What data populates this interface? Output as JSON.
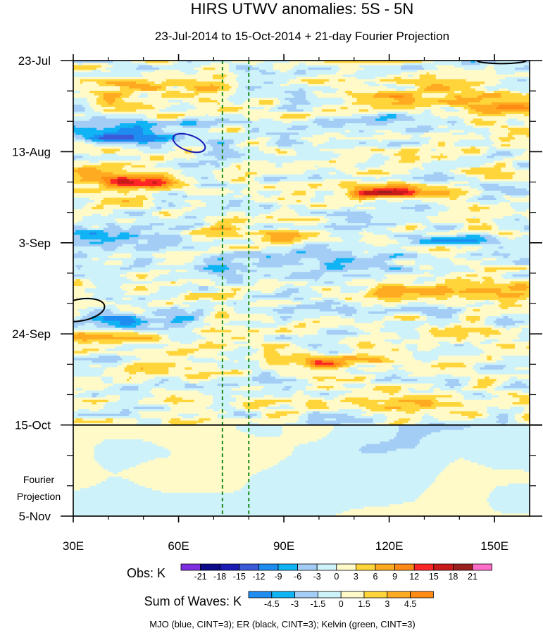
{
  "chart_data": {
    "type": "heatmap",
    "title": "HIRS UTWV anomalies: 5S - 5N",
    "subtitle": "23-Jul-2014 to 15-Oct-2014 + 21-day Fourier Projection",
    "xlabel": "",
    "ylabel": "",
    "x_range": [
      30,
      160
    ],
    "x_ticks": [
      30,
      60,
      90,
      120,
      150
    ],
    "x_tick_labels": [
      "30E",
      "60E",
      "90E",
      "120E",
      "150E"
    ],
    "y_range_days": [
      0,
      105
    ],
    "y_ticks_days": [
      0,
      21,
      42,
      63,
      84,
      105
    ],
    "y_tick_labels": [
      "23-Jul",
      "13-Aug",
      "3-Sep",
      "24-Sep",
      "15-Oct",
      "5-Nov"
    ],
    "projection_start_day": 84,
    "projection_label_1": "Fourier",
    "projection_label_2": "Projection",
    "dashed_lines_lon": [
      72.5,
      80
    ],
    "obs": {
      "label": "Obs: K",
      "levels": [
        -21,
        -18,
        -15,
        -12,
        -9,
        -6,
        -3,
        0,
        3,
        6,
        9,
        12,
        15,
        18,
        21
      ],
      "level_labels": [
        "-21",
        "-18",
        "-15",
        "-12",
        "-9",
        "-6",
        "-3",
        "0",
        "3",
        "6",
        "9",
        "12",
        "15",
        "18",
        "21"
      ],
      "colors": [
        "#7e2ee0",
        "#0a0a8a",
        "#1a1ab4",
        "#3a5ad8",
        "#1e8cf0",
        "#10b4f4",
        "#a4cdf6",
        "#cef2fa",
        "#fffac8",
        "#ffd53a",
        "#ffab21",
        "#ff8a14",
        "#ff2626",
        "#c81a1a",
        "#9b1f1f",
        "#ff6ec8"
      ]
    },
    "waves": {
      "label": "Sum of Waves: K",
      "levels": [
        -4.5,
        -3,
        -1.5,
        0,
        1.5,
        3,
        4.5
      ],
      "level_labels": [
        "-4.5",
        "-3",
        "-1.5",
        "0",
        "1.5",
        "3",
        "4.5"
      ],
      "colors": [
        "#1e8cf0",
        "#10b4f4",
        "#a4cdf6",
        "#cef2fa",
        "#fffac8",
        "#ffd53a",
        "#ffab21",
        "#ff8a14"
      ]
    },
    "contours": [
      {
        "wave": "MJO",
        "color": "#1a1ab4",
        "lon": 63,
        "day": 19.0,
        "rlon": 4.8,
        "rday": 1.8,
        "rotate": 20
      },
      {
        "wave": "ER",
        "color": "#000000",
        "lon": 32,
        "day": 57.5,
        "rlon": 7,
        "rday": 2.5,
        "rotate": -10
      },
      {
        "wave": "ER",
        "color": "#000000",
        "lon": 152,
        "day": 0.0,
        "rlon": 7,
        "rday": 0.7,
        "rotate": 0
      }
    ],
    "anomaly_bands": [
      {
        "day": 6.5,
        "thick": 2.2,
        "lon0": 30,
        "lon1": 75,
        "value": 5.0
      },
      {
        "day": 9.0,
        "thick": 2.5,
        "lon0": 120,
        "lon1": 160,
        "value": 6.5
      },
      {
        "day": 11.0,
        "thick": 1.5,
        "lon0": 145,
        "lon1": 160,
        "value": 9.0
      },
      {
        "day": 27.0,
        "thick": 3.0,
        "lon0": 30,
        "lon1": 57,
        "value": 7.0
      },
      {
        "day": 28.0,
        "thick": 1.2,
        "lon0": 42,
        "lon1": 55,
        "value": 10.0
      },
      {
        "day": 30.0,
        "thick": 1.8,
        "lon0": 110,
        "lon1": 135,
        "value": 7.0
      },
      {
        "day": 30.5,
        "thick": 1.0,
        "lon0": 113,
        "lon1": 125,
        "value": 9.0
      },
      {
        "day": 40.0,
        "thick": 1.5,
        "lon0": 62,
        "lon1": 102,
        "value": 5.0
      },
      {
        "day": 53.0,
        "thick": 1.8,
        "lon0": 115,
        "lon1": 160,
        "value": 4.0
      },
      {
        "day": 64.0,
        "thick": 1.8,
        "lon0": 30,
        "lon1": 52,
        "value": 5.0
      },
      {
        "day": 69.5,
        "thick": 1.8,
        "lon0": 88,
        "lon1": 118,
        "value": 5.0
      },
      {
        "day": 70.0,
        "thick": 0.9,
        "lon0": 98,
        "lon1": 104,
        "value": 8.0
      },
      {
        "day": 79.5,
        "thick": 1.5,
        "lon0": 80,
        "lon1": 160,
        "value": 4.0
      },
      {
        "day": 16.0,
        "thick": 2.0,
        "lon0": 30,
        "lon1": 65,
        "value": -6.0
      },
      {
        "day": 18.0,
        "thick": 1.0,
        "lon0": 38,
        "lon1": 55,
        "value": -9.0
      },
      {
        "day": 13.5,
        "thick": 1.5,
        "lon0": 100,
        "lon1": 135,
        "value": -5.0
      },
      {
        "day": 40.5,
        "thick": 1.8,
        "lon0": 30,
        "lon1": 62,
        "value": -6.0
      },
      {
        "day": 41.5,
        "thick": 1.0,
        "lon0": 128,
        "lon1": 152,
        "value": -8.0
      },
      {
        "day": 46.5,
        "thick": 2.0,
        "lon0": 70,
        "lon1": 120,
        "value": -5.0
      },
      {
        "day": 60.5,
        "thick": 2.0,
        "lon0": 38,
        "lon1": 62,
        "value": -7.0
      },
      {
        "day": 57.5,
        "thick": 1.5,
        "lon0": 100,
        "lon1": 140,
        "value": -4.5
      }
    ]
  },
  "footer": "MJO (blue, CINT=3); ER (black, CINT=3); Kelvin (green, CINT=3)"
}
